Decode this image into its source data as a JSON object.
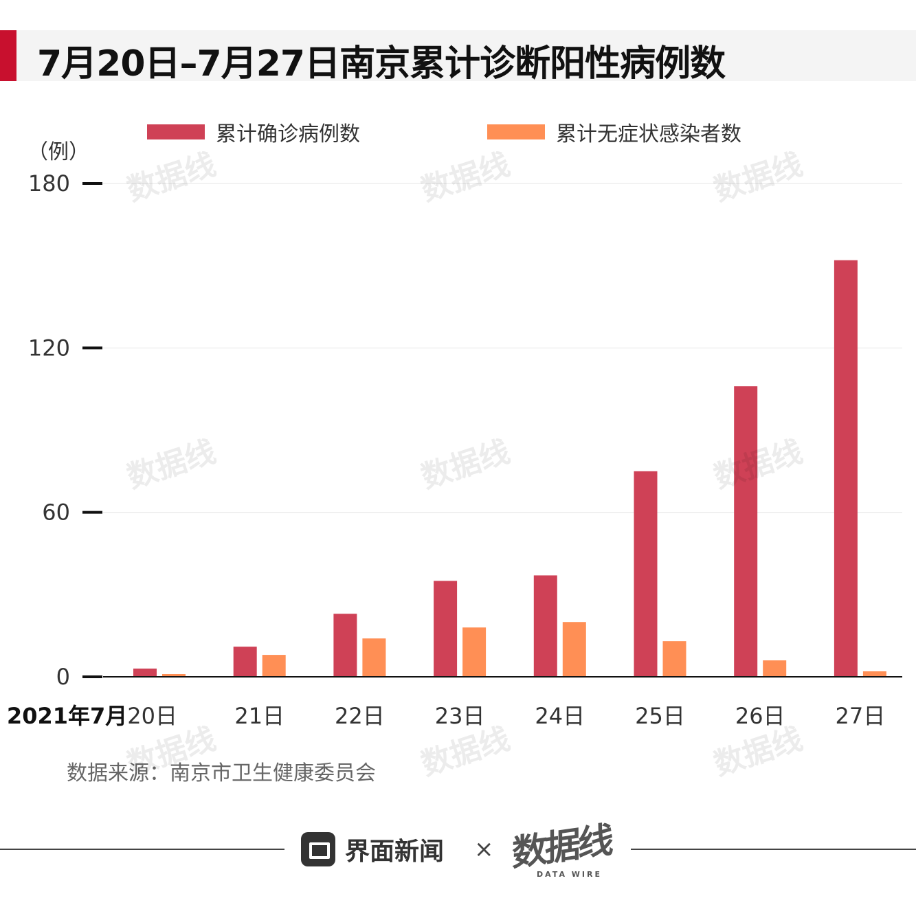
{
  "header": {
    "title": "7月20日–7月27日南京累计诊断阳性病例数"
  },
  "colors": {
    "accent": "#c8102e",
    "confirmed": "#cf4156",
    "asymptomatic": "#ff8f55",
    "grid": "#e6e6e6"
  },
  "chart_data": {
    "type": "bar",
    "unit_label": "（例）",
    "x_first_prefix": "2021年7月",
    "categories": [
      "20日",
      "21日",
      "22日",
      "23日",
      "24日",
      "25日",
      "26日",
      "27日"
    ],
    "series": [
      {
        "name": "累计确诊病例数",
        "values": [
          3,
          11,
          23,
          35,
          37,
          75,
          106,
          152
        ]
      },
      {
        "name": "累计无症状感染者数",
        "values": [
          1,
          8,
          14,
          18,
          20,
          13,
          6,
          2
        ]
      }
    ],
    "yticks": [
      "0",
      "60",
      "120",
      "180"
    ],
    "ylim": [
      0,
      180
    ],
    "grid": true,
    "legend": "top"
  },
  "source": "数据来源：南京市卫生健康委员会",
  "footer": {
    "brand": "界面新闻",
    "separator": "×",
    "partner": "数据线",
    "partner_sub": "DATA WIRE"
  },
  "watermark": {
    "text": "数据线",
    "icon": "watermark-logo"
  }
}
